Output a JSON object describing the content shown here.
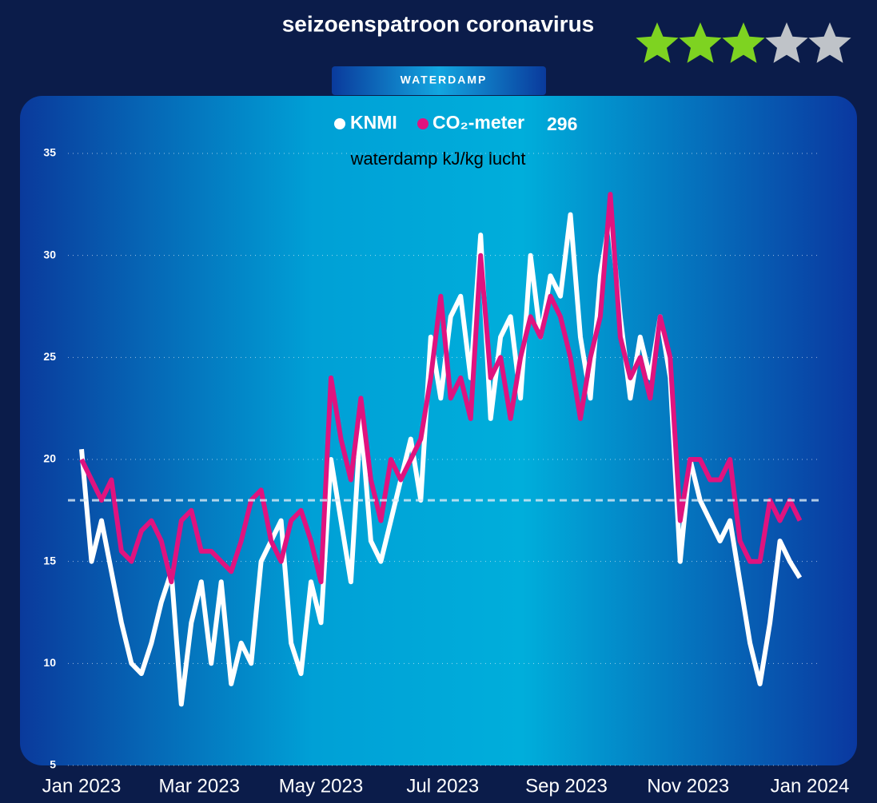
{
  "chart_data": {
    "type": "line",
    "title": "seizoenspatroon coronavirus",
    "tab": "WATERDAMP",
    "subtitle": "waterdamp kJ/kg lucht",
    "badge": "296",
    "rating": 3,
    "rating_max": 5,
    "rating_color": "#7ed321",
    "rating_empty_color": "#bfc3c8",
    "x": [
      0,
      5,
      10,
      15,
      20,
      25,
      30,
      35,
      40,
      45,
      50,
      55,
      60,
      65,
      70,
      75,
      80,
      85,
      90,
      95,
      100,
      105,
      110,
      115,
      120,
      125,
      130,
      135,
      140,
      145,
      150,
      155,
      160,
      165,
      170,
      175,
      180,
      185,
      190,
      195,
      200,
      205,
      210,
      215,
      220,
      225,
      230,
      235,
      240,
      245,
      250,
      255,
      260,
      265,
      270,
      275,
      280,
      285,
      290,
      295,
      300,
      305,
      310,
      315,
      320,
      325,
      330,
      335,
      340,
      345,
      350,
      355,
      360
    ],
    "series": [
      {
        "name": "KNMI",
        "color": "#ffffff",
        "values": [
          20.5,
          15,
          17,
          14.5,
          12,
          10,
          9.5,
          11,
          13,
          14.5,
          8,
          12,
          14,
          10,
          14,
          9,
          11,
          10,
          15,
          16,
          17,
          11,
          9.5,
          14,
          12,
          20,
          17,
          14,
          22,
          16,
          15,
          17,
          19,
          21,
          18,
          26,
          23,
          27,
          28,
          24,
          31,
          22,
          26,
          27,
          23,
          30,
          26,
          29,
          28,
          32,
          26,
          23,
          29,
          32,
          27,
          23,
          26,
          24,
          27,
          24,
          15,
          20,
          18,
          17,
          16,
          17,
          14,
          11,
          9,
          12,
          16,
          15,
          14.2
        ]
      },
      {
        "name": "CO₂-meter",
        "color": "#e0137f",
        "values": [
          20,
          19,
          18,
          19,
          15.5,
          15,
          16.5,
          17,
          16,
          14,
          17,
          17.5,
          15.5,
          15.5,
          15,
          14.5,
          16,
          18,
          18.5,
          16,
          15,
          17,
          17.5,
          16,
          14,
          24,
          21,
          19,
          23,
          19,
          17,
          20,
          19,
          20,
          21,
          24,
          28,
          23,
          24,
          22,
          30,
          24,
          25,
          22,
          25,
          27,
          26,
          28,
          27,
          25,
          22,
          25,
          27,
          33,
          26,
          24,
          25,
          23,
          27,
          25,
          17,
          20,
          20,
          19,
          19,
          20,
          16,
          15,
          15,
          18,
          17,
          18,
          17
        ]
      }
    ],
    "reference_line": 18,
    "xlim": [
      0,
      365
    ],
    "xticks": [
      {
        "value": 0,
        "label": "Jan 2023"
      },
      {
        "value": 59,
        "label": "Mar 2023"
      },
      {
        "value": 120,
        "label": "May 2023"
      },
      {
        "value": 181,
        "label": "Jul 2023"
      },
      {
        "value": 243,
        "label": "Sep 2023"
      },
      {
        "value": 304,
        "label": "Nov 2023"
      },
      {
        "value": 365,
        "label": "Jan 2024"
      }
    ],
    "ylim": [
      5,
      35
    ],
    "yticks": [
      5,
      10,
      15,
      20,
      25,
      30,
      35
    ],
    "grid": true
  }
}
